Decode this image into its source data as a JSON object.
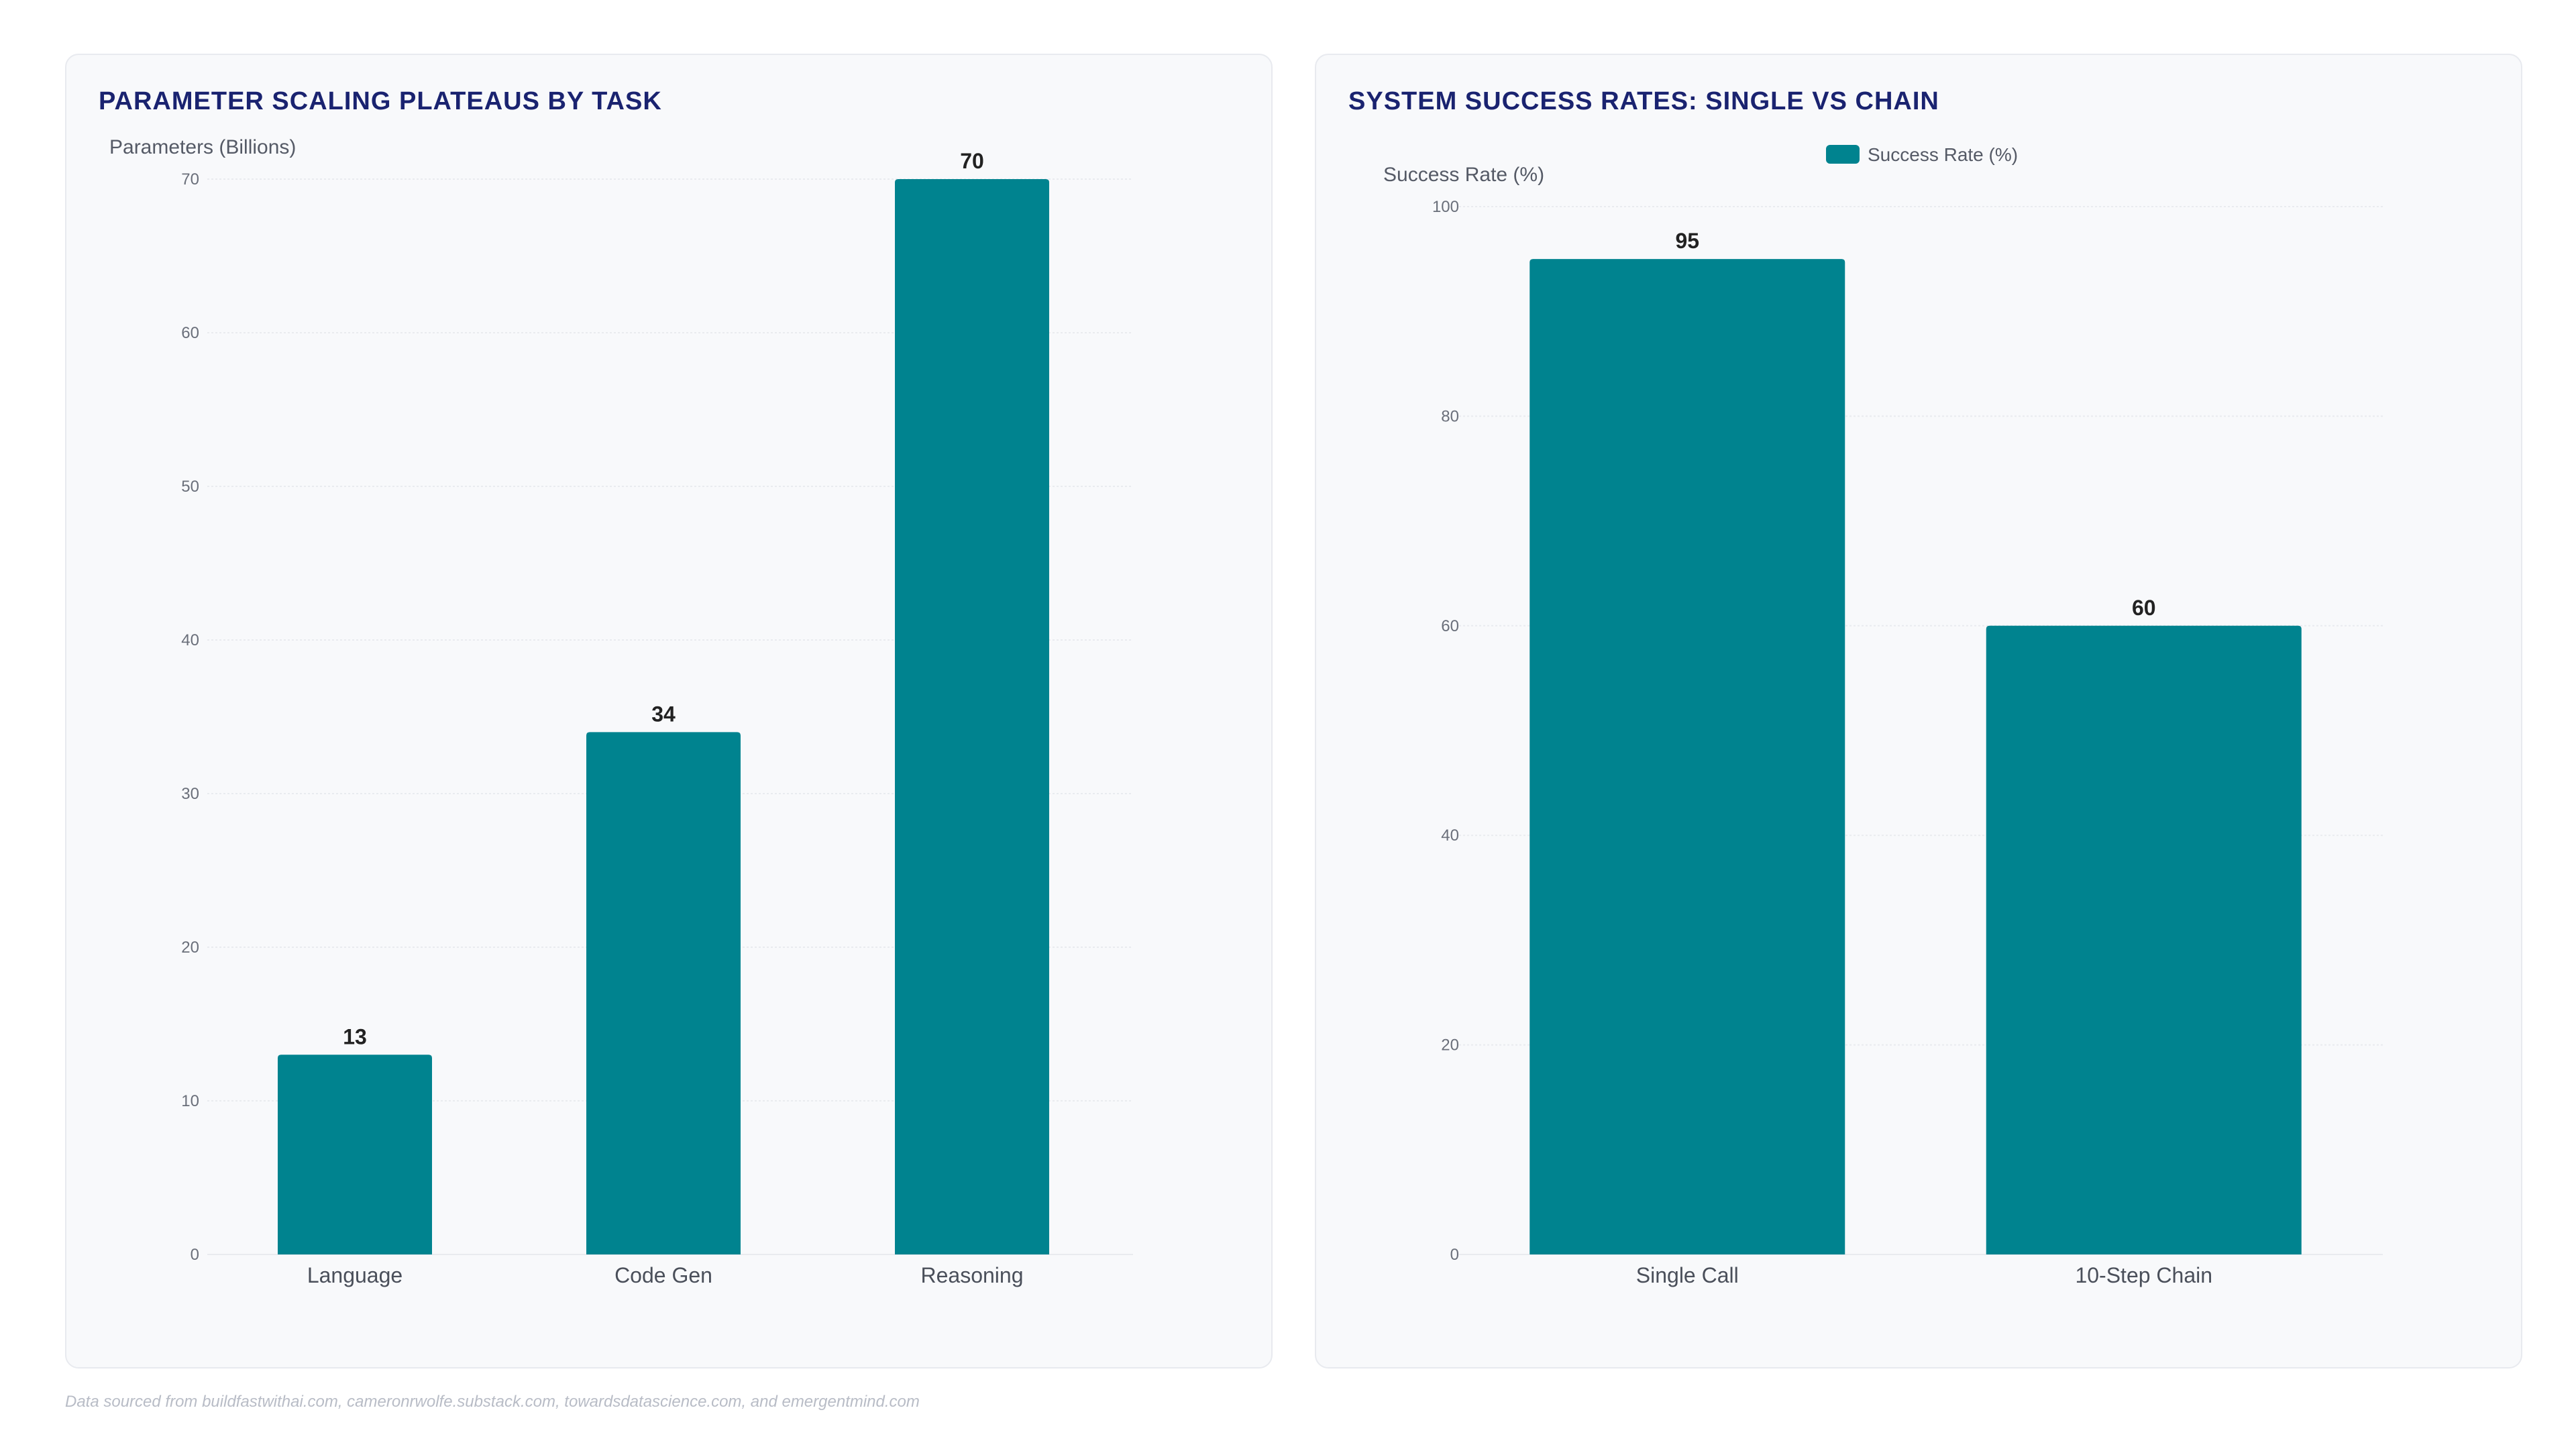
{
  "footer": "Data sourced from buildfastwithai.com, cameronrwolfe.substack.com, towardsdatascience.com, and emergentmind.com",
  "colors": {
    "bar": "#00838f",
    "title": "#1a2370",
    "grid": "#e9ebef"
  },
  "chart_data": [
    {
      "type": "bar",
      "title": "PARAMETER SCALING PLATEAUS BY TASK",
      "ylabel": "Parameters (Billions)",
      "xlabel": "",
      "categories": [
        "Language",
        "Code Gen",
        "Reasoning"
      ],
      "values": [
        13,
        34,
        70
      ],
      "ylim": [
        0,
        70
      ],
      "yticks": [
        0,
        10,
        20,
        30,
        40,
        50,
        60,
        70
      ],
      "grid": true,
      "legend": null
    },
    {
      "type": "bar",
      "title": "SYSTEM SUCCESS RATES: SINGLE VS CHAIN",
      "ylabel": "Success Rate (%)",
      "xlabel": "",
      "categories": [
        "Single Call",
        "10-Step Chain"
      ],
      "series": [
        {
          "name": "Success Rate (%)",
          "values": [
            95,
            60
          ]
        }
      ],
      "ylim": [
        0,
        100
      ],
      "yticks": [
        0,
        20,
        40,
        60,
        80,
        100
      ],
      "grid": true,
      "legend": "top-center"
    }
  ]
}
